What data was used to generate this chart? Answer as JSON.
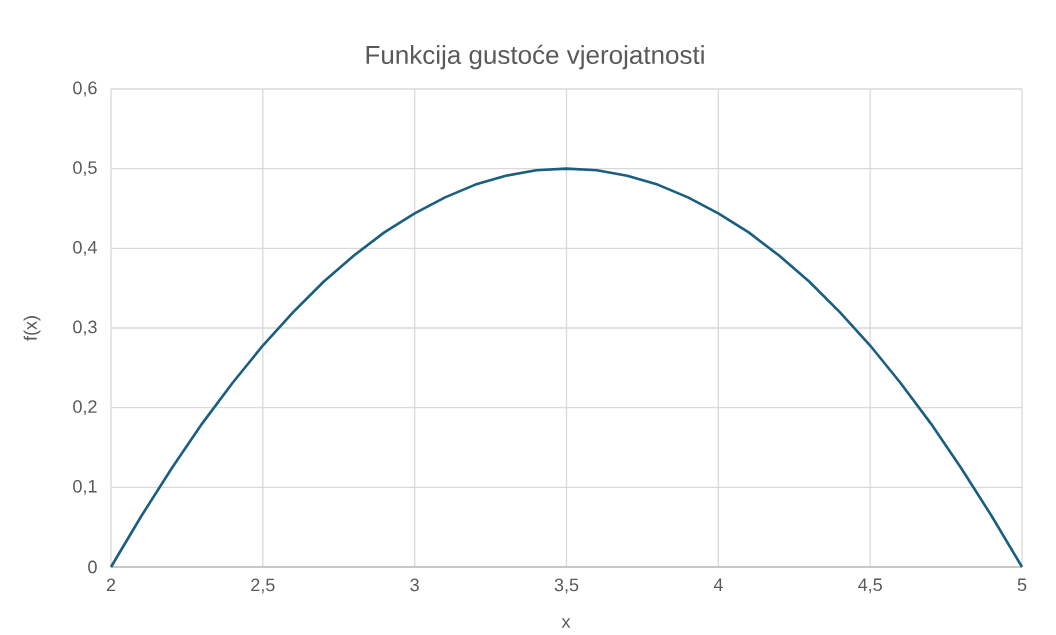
{
  "chart_data": {
    "type": "line",
    "title": "Funkcija gustoće vjerojatnosti",
    "xlabel": "x",
    "ylabel": "f(x)",
    "x": [
      2.0,
      2.1,
      2.2,
      2.3,
      2.4,
      2.5,
      2.6,
      2.7,
      2.8,
      2.9,
      3.0,
      3.1,
      3.2,
      3.3,
      3.4,
      3.5,
      3.6,
      3.7,
      3.8,
      3.9,
      4.0,
      4.1,
      4.2,
      4.3,
      4.4,
      4.5,
      4.6,
      4.7,
      4.8,
      4.9,
      5.0
    ],
    "series": [
      {
        "color": "#1a5e80",
        "values": [
          0,
          0.064,
          0.124,
          0.18,
          0.231,
          0.278,
          0.32,
          0.358,
          0.391,
          0.42,
          0.444,
          0.464,
          0.48,
          0.491,
          0.498,
          0.5,
          0.498,
          0.491,
          0.48,
          0.464,
          0.444,
          0.42,
          0.391,
          0.358,
          0.32,
          0.278,
          0.231,
          0.18,
          0.124,
          0.064,
          0
        ]
      }
    ],
    "xlim": [
      2,
      5
    ],
    "ylim": [
      0,
      0.6
    ],
    "xticks": [
      2,
      {
        "value": 2.5,
        "label": "2,5"
      },
      3,
      {
        "value": 3.5,
        "label": "3,5"
      },
      4,
      {
        "value": 4.5,
        "label": "4,5"
      },
      5
    ],
    "yticks": [
      0,
      {
        "value": 0.1,
        "label": "0,1"
      },
      {
        "value": 0.2,
        "label": "0,2"
      },
      {
        "value": 0.3,
        "label": "0,3"
      },
      {
        "value": 0.4,
        "label": "0,4"
      },
      {
        "value": 0.5,
        "label": "0,5"
      },
      {
        "value": 0.6,
        "label": "0,6"
      }
    ],
    "grid": true,
    "marker": "none",
    "line_style": "solid"
  }
}
